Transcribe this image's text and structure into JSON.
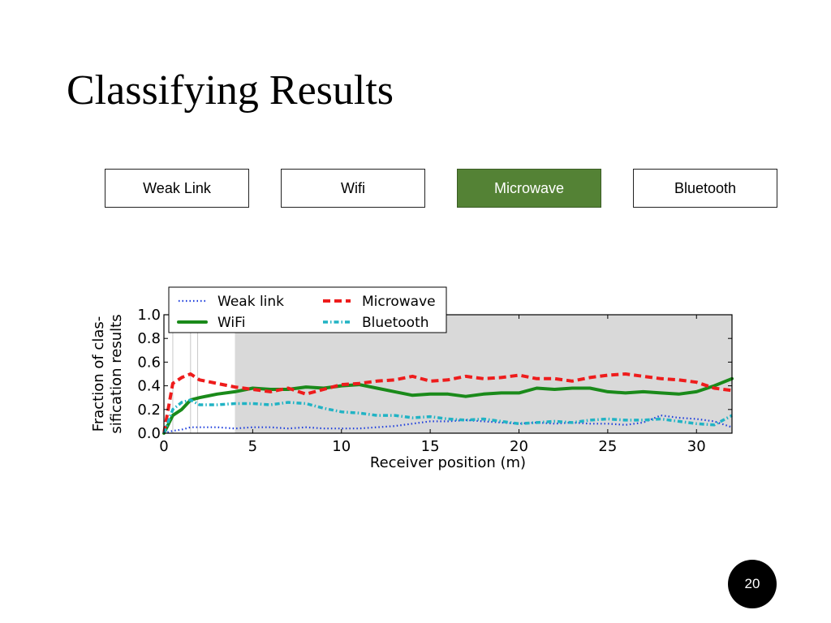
{
  "slide": {
    "title": "Classifying Results",
    "page_number": "20"
  },
  "tabs": [
    {
      "label": "Weak Link",
      "active": false
    },
    {
      "label": "Wifi",
      "active": false
    },
    {
      "label": "Microwave",
      "active": true
    },
    {
      "label": "Bluetooth",
      "active": false
    }
  ],
  "colors": {
    "active_tab": "#548235",
    "shaded_region": "#d9d9d9",
    "weak_link": "#1f3fdc",
    "wifi": "#1a8a1a",
    "microwave": "#ee1c1c",
    "bluetooth": "#21b3c4"
  },
  "chart_data": {
    "type": "line",
    "xlabel": "Receiver position (m)",
    "ylabel": "Fraction of clas-\nsification results",
    "xlim": [
      0,
      32
    ],
    "ylim": [
      0,
      1.0
    ],
    "xticks": [
      0,
      5,
      10,
      15,
      20,
      25,
      30
    ],
    "yticks": [
      0.0,
      0.2,
      0.4,
      0.6,
      0.8,
      1.0
    ],
    "grid": false,
    "legend": "top-left",
    "shaded_region": [
      4,
      32
    ],
    "vertical_lines": [
      0.5,
      1.5,
      1.9
    ],
    "series": [
      {
        "name": "Weak link",
        "style": "dotted",
        "x": [
          0,
          0.5,
          1,
          1.5,
          2,
          3,
          4,
          5,
          6,
          7,
          8,
          9,
          10,
          11,
          12,
          13,
          14,
          15,
          16,
          17,
          18,
          19,
          20,
          21,
          22,
          23,
          24,
          25,
          26,
          27,
          28,
          29,
          30,
          31,
          32
        ],
        "y": [
          0.0,
          0.02,
          0.03,
          0.05,
          0.05,
          0.05,
          0.04,
          0.05,
          0.05,
          0.04,
          0.05,
          0.04,
          0.04,
          0.04,
          0.05,
          0.06,
          0.08,
          0.1,
          0.1,
          0.11,
          0.1,
          0.09,
          0.08,
          0.09,
          0.08,
          0.09,
          0.08,
          0.08,
          0.07,
          0.09,
          0.15,
          0.13,
          0.12,
          0.1,
          0.05
        ]
      },
      {
        "name": "WiFi",
        "style": "solid",
        "x": [
          0,
          0.5,
          1,
          1.5,
          2,
          3,
          4,
          5,
          6,
          7,
          8,
          9,
          10,
          11,
          12,
          13,
          14,
          15,
          16,
          17,
          18,
          19,
          20,
          21,
          22,
          23,
          24,
          25,
          26,
          27,
          28,
          29,
          30,
          31,
          32
        ],
        "y": [
          0.0,
          0.15,
          0.2,
          0.28,
          0.3,
          0.33,
          0.35,
          0.38,
          0.37,
          0.37,
          0.39,
          0.38,
          0.4,
          0.41,
          0.38,
          0.35,
          0.32,
          0.33,
          0.33,
          0.31,
          0.33,
          0.34,
          0.34,
          0.38,
          0.37,
          0.38,
          0.38,
          0.35,
          0.34,
          0.35,
          0.34,
          0.33,
          0.35,
          0.4,
          0.46
        ]
      },
      {
        "name": "Microwave",
        "style": "dashed",
        "x": [
          0,
          0.5,
          1,
          1.5,
          2,
          3,
          4,
          5,
          6,
          7,
          8,
          9,
          10,
          11,
          12,
          13,
          14,
          15,
          16,
          17,
          18,
          19,
          20,
          21,
          22,
          23,
          24,
          25,
          26,
          27,
          28,
          29,
          30,
          31,
          32
        ],
        "y": [
          0.0,
          0.42,
          0.47,
          0.5,
          0.45,
          0.42,
          0.39,
          0.37,
          0.35,
          0.38,
          0.33,
          0.37,
          0.41,
          0.42,
          0.44,
          0.45,
          0.48,
          0.44,
          0.45,
          0.48,
          0.46,
          0.47,
          0.49,
          0.46,
          0.46,
          0.44,
          0.47,
          0.49,
          0.5,
          0.48,
          0.46,
          0.45,
          0.43,
          0.38,
          0.36
        ]
      },
      {
        "name": "Bluetooth",
        "style": "dashdot",
        "x": [
          0,
          0.5,
          1,
          1.5,
          2,
          3,
          4,
          5,
          6,
          7,
          8,
          9,
          10,
          11,
          12,
          13,
          14,
          15,
          16,
          17,
          18,
          19,
          20,
          21,
          22,
          23,
          24,
          25,
          26,
          27,
          28,
          29,
          30,
          31,
          32
        ],
        "y": [
          0.0,
          0.2,
          0.26,
          0.28,
          0.24,
          0.24,
          0.25,
          0.25,
          0.24,
          0.26,
          0.25,
          0.21,
          0.18,
          0.17,
          0.15,
          0.15,
          0.13,
          0.14,
          0.12,
          0.11,
          0.12,
          0.1,
          0.08,
          0.09,
          0.1,
          0.09,
          0.11,
          0.12,
          0.11,
          0.11,
          0.12,
          0.1,
          0.08,
          0.07,
          0.15
        ]
      }
    ]
  }
}
